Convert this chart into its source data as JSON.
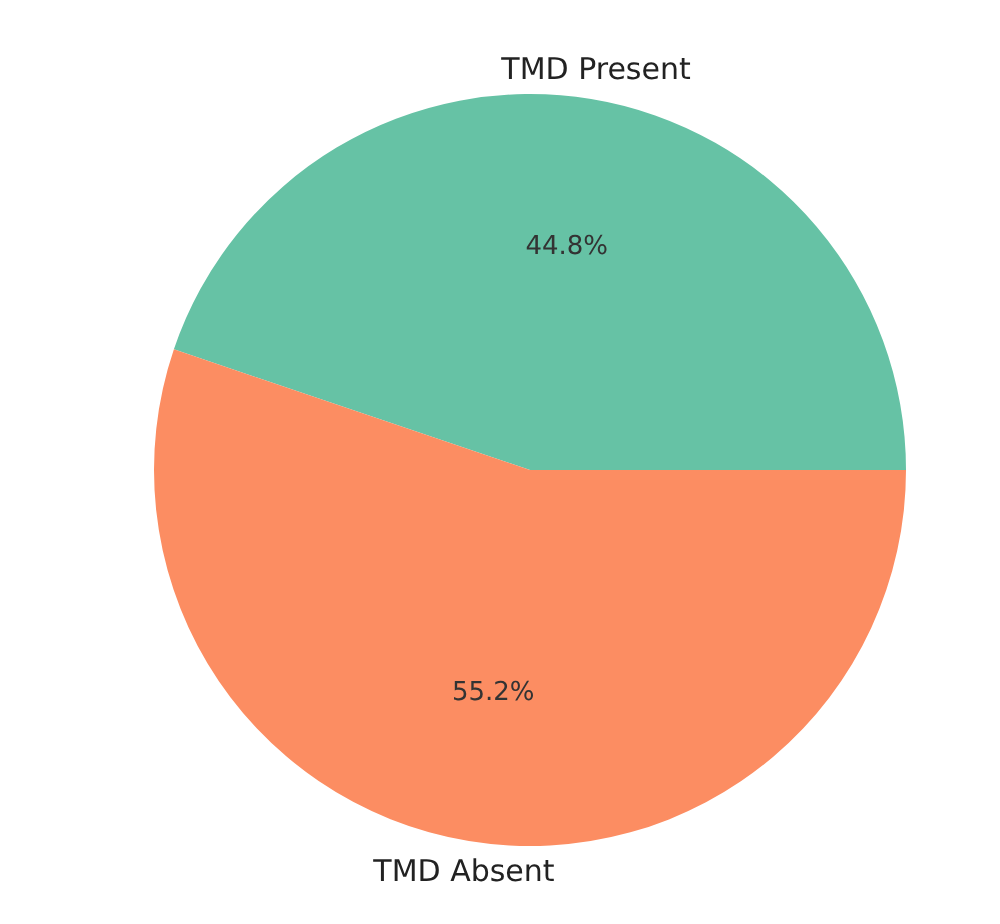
{
  "chart_data": {
    "type": "pie",
    "categories": [
      "TMD Present",
      "TMD Absent"
    ],
    "values": [
      44.8,
      55.2
    ],
    "colors": [
      "#66c2a5",
      "#fc8d62"
    ],
    "value_labels": [
      "44.8%",
      "55.2%"
    ],
    "legend": false
  }
}
